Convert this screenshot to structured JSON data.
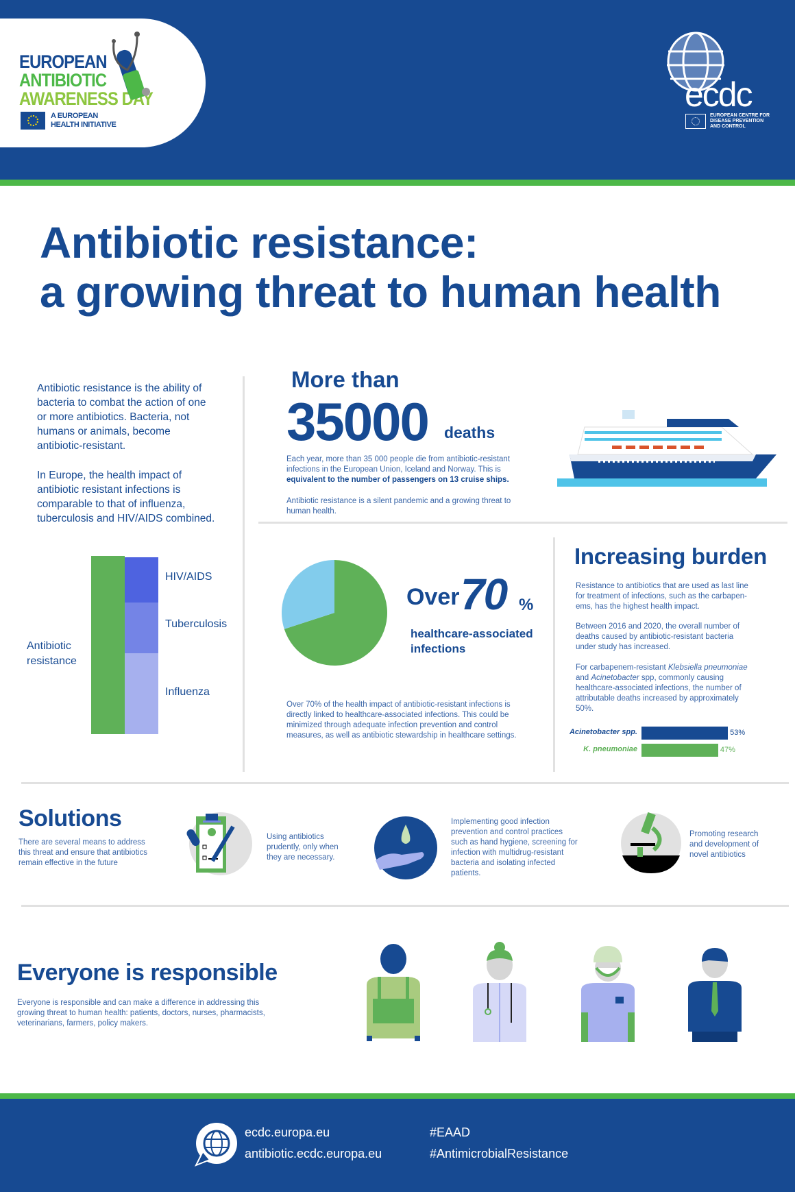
{
  "header": {
    "eaad_logo": {
      "line1": "EUROPEAN",
      "line2": "ANTIBIOTIC",
      "line3": "AWARENESS DAY",
      "tagline1": "A EUROPEAN",
      "tagline2": "HEALTH INITIATIVE"
    },
    "ecdc_logo": {
      "word": "ecdc",
      "sub1": "EUROPEAN CENTRE FOR",
      "sub2": "DISEASE PREVENTION",
      "sub3": "AND CONTROL"
    }
  },
  "title": "Antibiotic resistance:\na growing threat to human health",
  "intro": {
    "p1": "Antibiotic resistance is the ability of\nbacteria to combat the action of one\nor more antibiotics. Bacteria, not\nhumans or animals, become\nantibiotic-resistant.",
    "p2": "In Europe, the health impact of\nantibiotic resistant infections is\ncomparable to that of influenza,\ntuberculosis and HIV/AIDS combined."
  },
  "deaths": {
    "more_than": "More than",
    "number": "35000",
    "unit": "deaths",
    "text1": "Each year, more than 35 000 people die from antibiotic-resistant\ninfections in the European Union, Iceland and Norway. This is",
    "text1_bold": "equivalent to the number of passengers on 13 cruise ships.",
    "text2": "Antibiotic resistance is a silent pandemic and a growing threat to\nhuman health."
  },
  "hai": {
    "over": "Over",
    "number": "70",
    "percent": "%",
    "label": "healthcare-associated\ninfections",
    "text": "Over 70% of the health impact of antibiotic-resistant infections is\ndirectly linked to healthcare-associated infections. This could be\nminimized through adequate infection prevention and control\nmeasures, as well as antibiotic stewardship in healthcare settings."
  },
  "burden": {
    "title": "Increasing burden",
    "p1": "Resistance to antibiotics that are used as last line\nfor treatment of infections, such as the carbapen-\nems, has the highest health impact.",
    "p2": "Between 2016 and 2020, the overall number of\ndeaths caused by antibiotic-resistant bacteria\nunder study has increased.",
    "p3_a": "For carbapenem-resistant ",
    "p3_i1": "Klebsiella pneumoniae",
    "p3_b": "and ",
    "p3_i2": "Acinetobacter",
    "p3_c": " spp, commonly causing\nhealthcare-associated infections, the number of\nattributable deaths increased by approximately\n50%."
  },
  "chart_data": [
    {
      "type": "bar",
      "stacked": true,
      "categories": [
        "Antibiotic resistance",
        "Influenza + Tuberculosis + HIV/AIDS"
      ],
      "series": [
        {
          "name": "Antibiotic resistance",
          "values": [
            100,
            0
          ]
        },
        {
          "name": "Influenza",
          "values": [
            0,
            45
          ]
        },
        {
          "name": "Tuberculosis",
          "values": [
            0,
            29
          ]
        },
        {
          "name": "HIV/AIDS",
          "values": [
            0,
            26
          ]
        }
      ],
      "labels": {
        "left": "Antibiotic resistance",
        "segments": [
          "HIV/AIDS",
          "Tuberculosis",
          "Influenza"
        ]
      },
      "colors": {
        "Antibiotic resistance": "#5fb158",
        "HIV/AIDS": "#4e63e0",
        "Tuberculosis": "#7484e6",
        "Influenza": "#a6b0ee"
      }
    },
    {
      "type": "pie",
      "slices": [
        {
          "label": "healthcare-associated infections",
          "value": 70,
          "color": "#5fb158"
        },
        {
          "label": "other",
          "value": 30,
          "color": "#82ccec"
        }
      ]
    },
    {
      "type": "bar",
      "orientation": "horizontal",
      "categories": [
        "Acinetobacter spp.",
        "K. pneumoniae"
      ],
      "values": [
        53,
        47
      ],
      "value_labels": [
        "53%",
        "47%"
      ],
      "colors": [
        "#174a92",
        "#5fb158"
      ],
      "xlim": [
        0,
        100
      ]
    }
  ],
  "solutions": {
    "title": "Solutions",
    "desc": "There are several means to address\nthis threat and ensure that antibiotics\n remain effective in the future",
    "items": [
      {
        "icon": "clipboard-prescription-icon",
        "text": "Using antibiotics\nprudently, only when\nthey are necessary."
      },
      {
        "icon": "hand-hygiene-icon",
        "text": "Implementing good infection\nprevention and control practices\nsuch as hand hygiene, screening for\ninfection with multidrug-resistant\nbacteria and isolating infected\npatients."
      },
      {
        "icon": "microscope-icon",
        "text": "Promoting research\nand development of\nnovel antibiotics"
      }
    ]
  },
  "responsible": {
    "title": "Everyone is responsible",
    "desc": "Everyone is responsible and can make a difference in addressing this\ngrowing threat to human health: patients, doctors, nurses, pharmacists,\nveterinarians, farmers, policy makers.",
    "people": [
      "farmer-icon",
      "doctor-icon",
      "surgeon-icon",
      "policy-maker-icon"
    ]
  },
  "footer": {
    "link1": "ecdc.europa.eu",
    "link2": "antibiotic.ecdc.europa.eu",
    "tag1": "#EAAD",
    "tag2": "#AntimicrobialResistance"
  },
  "colors": {
    "brand_blue": "#174a92",
    "green": "#4db848",
    "light_green": "#8dc63f",
    "divider": "#e1e1e1"
  }
}
